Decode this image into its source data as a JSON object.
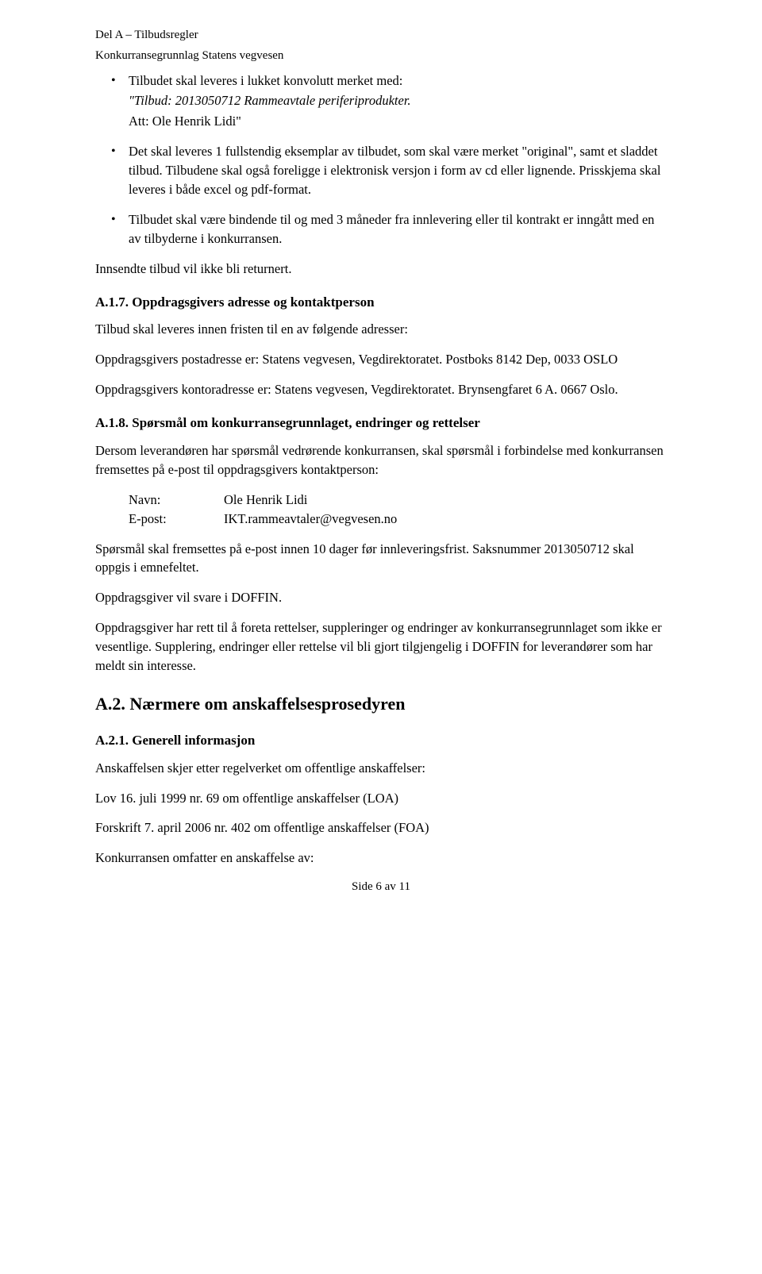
{
  "header": {
    "line1": "Del A – Tilbudsregler",
    "line2": "Konkurransegrunnlag Statens vegvesen"
  },
  "bullets1": {
    "item1_lead": "Tilbudet skal leveres i lukket konvolutt merket med:",
    "item1_quote": "\"Tilbud: 2013050712 Rammeavtale periferiprodukter.",
    "item1_attn": "Att: Ole Henrik Lidi\"",
    "item2": "Det skal leveres 1 fullstendig eksemplar av tilbudet, som skal være merket \"original\", samt et sladdet tilbud. Tilbudene skal også foreligge i elektronisk versjon i form av cd eller lignende. Prisskjema skal leveres i både excel og pdf-format.",
    "item3": "Tilbudet skal være bindende til og med 3 måneder fra innlevering eller til kontrakt er inngått med en av tilbyderne i konkurransen."
  },
  "p_returnert": "Innsendte tilbud vil ikke bli returnert.",
  "a17": {
    "heading": "A.1.7. Oppdragsgivers adresse og kontaktperson",
    "p1": "Tilbud skal leveres innen fristen til en av følgende adresser:",
    "p2": "Oppdragsgivers postadresse er: Statens vegvesen, Vegdirektoratet. Postboks 8142 Dep, 0033 OSLO",
    "p3": "Oppdragsgivers kontoradresse er: Statens vegvesen, Vegdirektoratet. Brynsengfaret 6 A. 0667 Oslo."
  },
  "a18": {
    "heading": "A.1.8. Spørsmål om konkurransegrunnlaget, endringer og rettelser",
    "p1": "Dersom leverandøren har spørsmål vedrørende konkurransen, skal spørsmål i forbindelse med konkurransen fremsettes på e-post til oppdragsgivers kontaktperson:",
    "contact": {
      "navn_label": "Navn:",
      "navn_value": "Ole Henrik Lidi",
      "epost_label": "E-post:",
      "epost_value": "IKT.rammeavtaler@vegvesen.no"
    },
    "p2": "Spørsmål skal fremsettes på e-post innen 10 dager før innleveringsfrist. Saksnummer 2013050712 skal oppgis i emnefeltet.",
    "p3": "Oppdragsgiver vil svare i DOFFIN.",
    "p4": "Oppdragsgiver har rett til å foreta rettelser, suppleringer og endringer av konkurransegrunnlaget som ikke er vesentlige. Supplering, endringer eller rettelse vil bli gjort tilgjengelig i DOFFIN for leverandører som har meldt sin interesse."
  },
  "a2": {
    "heading": "A.2.  Nærmere om anskaffelsesprosedyren"
  },
  "a21": {
    "heading": "A.2.1. Generell informasjon",
    "p1": "Anskaffelsen skjer etter regelverket om offentlige anskaffelser:",
    "p2": "Lov 16. juli 1999 nr. 69 om offentlige anskaffelser (LOA)",
    "p3": "Forskrift 7. april 2006 nr. 402 om offentlige anskaffelser (FOA)",
    "p4": "Konkurransen omfatter en anskaffelse av:"
  },
  "footer": "Side 6 av 11"
}
